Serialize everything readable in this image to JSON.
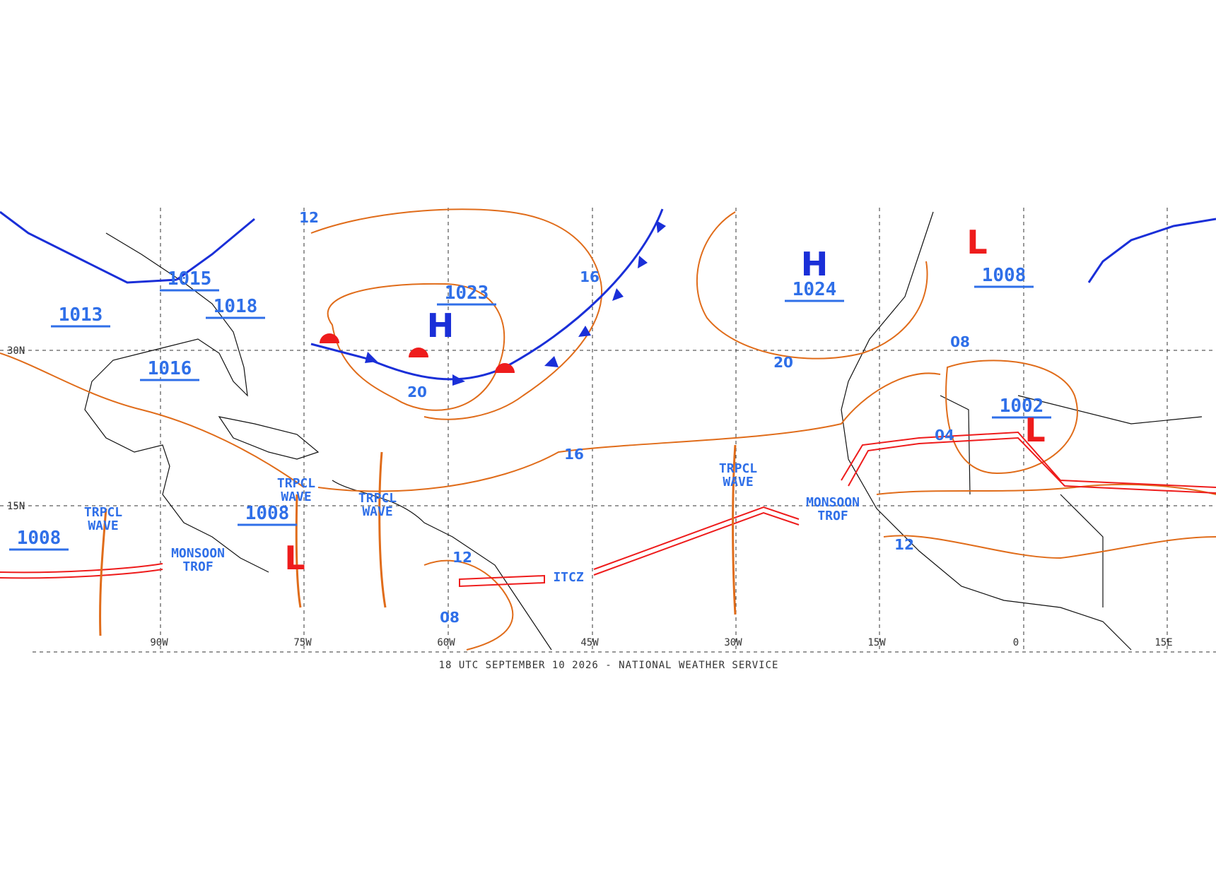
{
  "footer": "18 UTC SEPTEMBER 10 2026 - NATIONAL WEATHER SERVICE",
  "grid_labels": {
    "lat": [
      "30N",
      "15N"
    ],
    "lon": [
      "90W",
      "75W",
      "60W",
      "45W",
      "30W",
      "15W",
      "0",
      "15E"
    ]
  },
  "centers": [
    {
      "symbol": "H",
      "pressure": "1023"
    },
    {
      "symbol": "H",
      "pressure": "1024"
    },
    {
      "symbol": "L",
      "pressure": "1008"
    },
    {
      "symbol": "L",
      "pressure": "1008"
    },
    {
      "symbol": "L",
      "pressure": "1002"
    }
  ],
  "pressure_labels": [
    "1015",
    "1018",
    "1013",
    "1016",
    "1008"
  ],
  "isobar_labels": [
    "16",
    "20",
    "16",
    "20",
    "12",
    "12",
    "08",
    "08",
    "04",
    "12"
  ],
  "features": [
    {
      "lines": [
        "TRPCL",
        "WAVE"
      ]
    },
    {
      "lines": [
        "TRPCL",
        "WAVE"
      ]
    },
    {
      "lines": [
        "TRPCL",
        "WAVE"
      ]
    },
    {
      "lines": [
        "TRPCL",
        "WAVE"
      ]
    },
    {
      "lines": [
        "MONSOON",
        "TROF"
      ]
    },
    {
      "lines": [
        "MONSOON",
        "TROF"
      ]
    },
    {
      "lines": [
        "ITCZ"
      ]
    }
  ]
}
